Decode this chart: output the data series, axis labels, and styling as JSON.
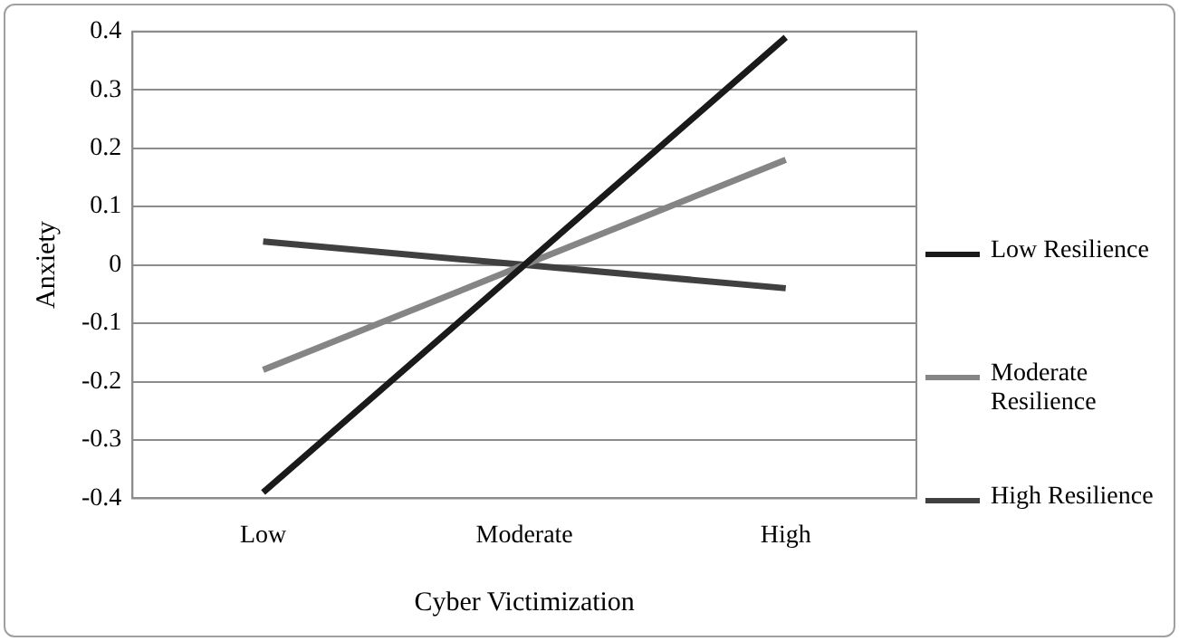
{
  "chart_data": {
    "type": "line",
    "xlabel": "Cyber Victimization",
    "ylabel": "Anxiety",
    "categories": [
      "Low",
      "Moderate",
      "High"
    ],
    "series": [
      {
        "name": "Low Resilience",
        "color": "#1a1a1a",
        "values": [
          -0.39,
          0,
          0.39
        ]
      },
      {
        "name": "Moderate Resilience",
        "color": "#858585",
        "values": [
          -0.18,
          0,
          0.18
        ]
      },
      {
        "name": "High Resilience",
        "color": "#404040",
        "values": [
          0.04,
          0,
          -0.04
        ]
      }
    ],
    "ylim": [
      -0.4,
      0.4
    ],
    "yticks": [
      -0.4,
      -0.3,
      -0.2,
      -0.1,
      0,
      0.1,
      0.2,
      0.3,
      0.4
    ],
    "grid": "y",
    "legend": "right",
    "marker": "none",
    "line_style": "solid"
  }
}
